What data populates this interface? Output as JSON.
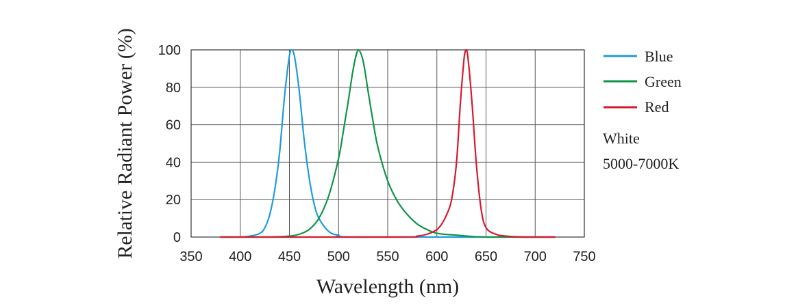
{
  "chart_data": {
    "type": "line",
    "xlabel": "Wavelength (nm)",
    "ylabel": "Relative Radiant Power (%)",
    "xlim": [
      350,
      750
    ],
    "ylim": [
      0,
      100
    ],
    "x_ticks": [
      "350",
      "400",
      "450",
      "500",
      "550",
      "600",
      "650",
      "700",
      "750"
    ],
    "y_ticks": [
      "0",
      "20",
      "40",
      "60",
      "80",
      "100"
    ],
    "grid": true,
    "legend_position": "right",
    "series": [
      {
        "name": "Blue",
        "color": "#1e9bd7",
        "x": [
          380,
          400,
          410,
          420,
          425,
          430,
          435,
          440,
          445,
          450,
          452,
          455,
          460,
          465,
          470,
          475,
          480,
          490,
          500,
          520,
          720
        ],
        "y": [
          0,
          0,
          0.5,
          2,
          5,
          12,
          25,
          45,
          75,
          97,
          100,
          97,
          78,
          52,
          32,
          18,
          10,
          3,
          1,
          0,
          0
        ]
      },
      {
        "name": "Green",
        "color": "#0f9347",
        "x": [
          380,
          430,
          450,
          460,
          470,
          480,
          490,
          500,
          505,
          510,
          515,
          520,
          525,
          530,
          535,
          540,
          550,
          560,
          570,
          580,
          590,
          600,
          620,
          650,
          720
        ],
        "y": [
          0,
          0,
          0.5,
          1.5,
          4,
          10,
          22,
          42,
          57,
          73,
          90,
          100,
          94,
          78,
          62,
          48,
          30,
          19,
          12,
          7,
          4,
          2,
          1,
          0,
          0
        ]
      },
      {
        "name": "Red",
        "color": "#d7192d",
        "x": [
          380,
          560,
          580,
          590,
          600,
          605,
          610,
          615,
          620,
          624,
          628,
          630,
          632,
          636,
          640,
          645,
          650,
          660,
          670,
          690,
          720
        ],
        "y": [
          0,
          0,
          0.5,
          1.5,
          4,
          7,
          12,
          20,
          40,
          72,
          97,
          100,
          94,
          70,
          40,
          15,
          5,
          1.5,
          0.5,
          0,
          0
        ]
      }
    ],
    "annotation": {
      "line1": "White",
      "line2": "5000-7000K"
    }
  }
}
